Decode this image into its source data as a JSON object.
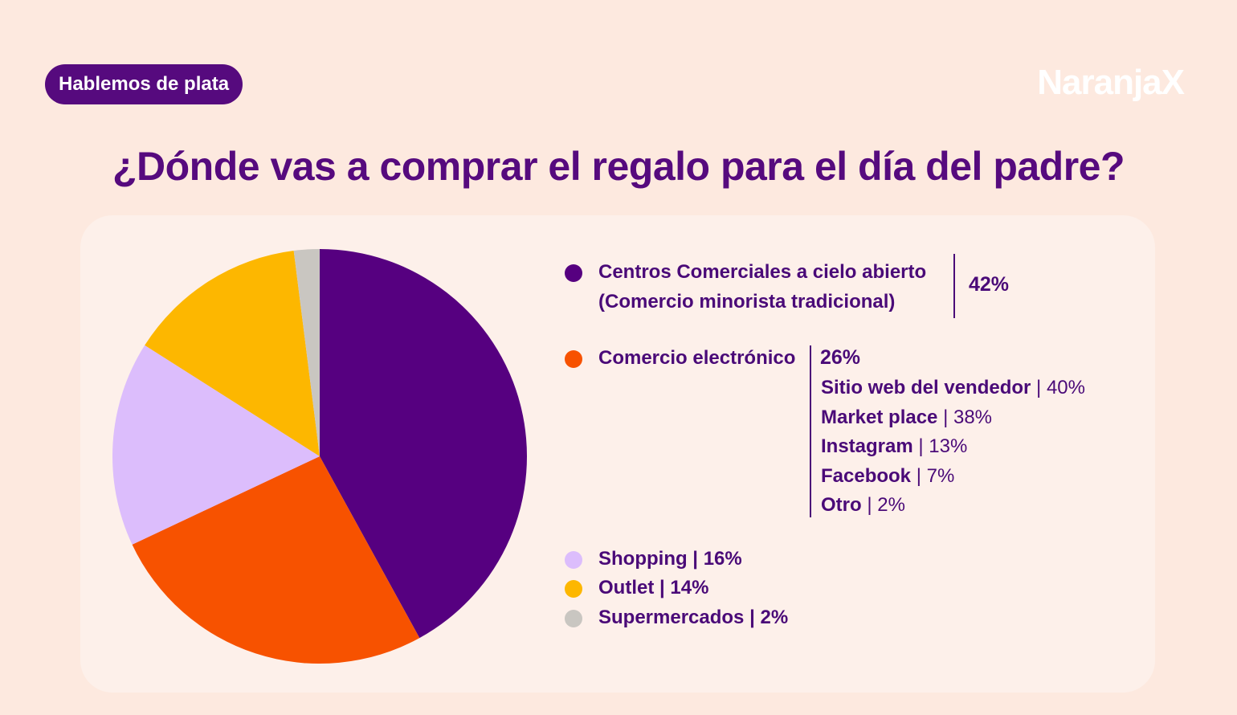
{
  "badge": "Hablemos de plata",
  "logo": "NaranjaX",
  "title": "¿Dónde vas a comprar el regalo para el día del padre?",
  "colors": {
    "centros": "#560080",
    "comercio": "#f75200",
    "shopping": "#dcbdfc",
    "outlet": "#fdb700",
    "supermercados": "#c9c6c1"
  },
  "legend": {
    "centros_line1": "Centros Comerciales a cielo abierto",
    "centros_line2": "(Comercio minorista tradicional)",
    "centros_pct": "42%",
    "comercio_label": "Comercio electrónico",
    "comercio_pct": "26%",
    "sub_items": [
      {
        "label": "Sitio web del vendedor",
        "value": "40%"
      },
      {
        "label": "Market place",
        "value": "38%"
      },
      {
        "label": "Instagram",
        "value": "13%"
      },
      {
        "label": "Facebook",
        "value": "7%"
      },
      {
        "label": "Otro",
        "value": "2%"
      }
    ],
    "shopping_label": "Shopping",
    "shopping_pct": "16%",
    "outlet_label": "Outlet",
    "outlet_pct": "14%",
    "supermercados_label": "Supermercados",
    "supermercados_pct": "2%"
  },
  "chart_data": {
    "type": "pie",
    "title": "¿Dónde vas a comprar el regalo para el día del padre?",
    "slices": [
      {
        "name": "Centros Comerciales a cielo abierto (Comercio minorista tradicional)",
        "value": 42,
        "color": "#560080"
      },
      {
        "name": "Comercio electrónico",
        "value": 26,
        "color": "#f75200"
      },
      {
        "name": "Shopping",
        "value": 16,
        "color": "#dcbdfc"
      },
      {
        "name": "Outlet",
        "value": 14,
        "color": "#fdb700"
      },
      {
        "name": "Supermercados",
        "value": 2,
        "color": "#c9c6c1"
      }
    ],
    "sub_breakdown": {
      "parent": "Comercio electrónico",
      "items": [
        {
          "name": "Sitio web del vendedor",
          "value": 40
        },
        {
          "name": "Market place",
          "value": 38
        },
        {
          "name": "Instagram",
          "value": 13
        },
        {
          "name": "Facebook",
          "value": 7
        },
        {
          "name": "Otro",
          "value": 2
        }
      ]
    },
    "legend_position": "right"
  }
}
